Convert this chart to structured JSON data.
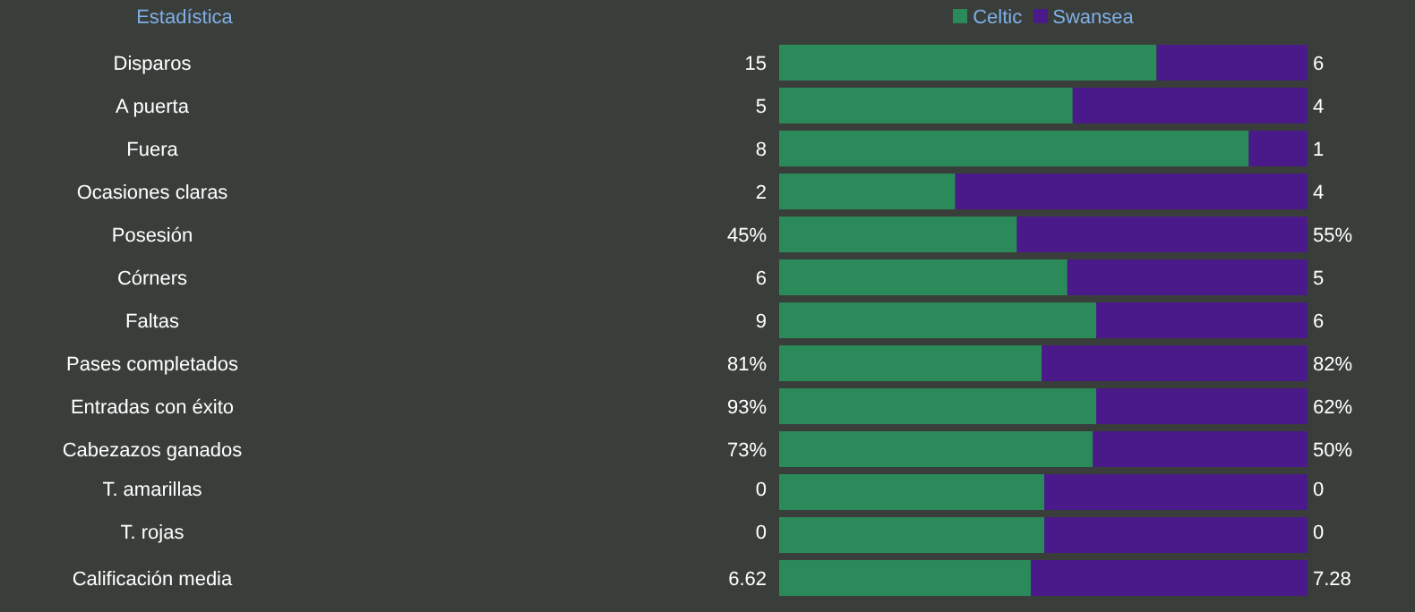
{
  "chart_data": [
    {
      "type": "bar",
      "orientation": "horizontal",
      "stacked": true,
      "data_labels": true,
      "tick_labels": "y",
      "ylabel": "Estadística",
      "legend": "top",
      "categories": [
        "Disparos"
      ],
      "xlim": [
        0,
        21
      ],
      "series": [
        {
          "name": "Celtic",
          "color": "#2b8a59",
          "values": [
            15
          ]
        },
        {
          "name": "Swansea",
          "color": "#4a1a8a",
          "values": [
            6
          ]
        }
      ]
    },
    {
      "type": "bar",
      "orientation": "horizontal",
      "stacked": true,
      "data_labels": true,
      "tick_labels": "y",
      "categories": [
        "A puerta"
      ],
      "xlim": [
        0,
        9
      ],
      "series": [
        {
          "color": "#2b8a59",
          "values": [
            5
          ]
        },
        {
          "color": "#4a1a8a",
          "values": [
            4
          ]
        }
      ]
    },
    {
      "type": "bar",
      "orientation": "horizontal",
      "stacked": true,
      "data_labels": true,
      "tick_labels": "y",
      "categories": [
        "Fuera"
      ],
      "xlim": [
        0,
        9
      ],
      "series": [
        {
          "color": "#2b8a59",
          "values": [
            8
          ]
        },
        {
          "color": "#4a1a8a",
          "values": [
            1
          ]
        }
      ]
    },
    {
      "type": "bar",
      "orientation": "horizontal",
      "stacked": true,
      "data_labels": true,
      "tick_labels": "y",
      "categories": [
        "Ocasiones claras"
      ],
      "xlim": [
        0,
        6
      ],
      "series": [
        {
          "color": "#2b8a59",
          "values": [
            2
          ]
        },
        {
          "color": "#4a1a8a",
          "values": [
            4
          ]
        }
      ]
    },
    {
      "type": "bar",
      "orientation": "horizontal",
      "stacked": true,
      "tick_labels": "y",
      "categories": [
        "Posesión"
      ],
      "xlim": [
        0,
        100
      ],
      "series": [
        {
          "color": "#2b8a59",
          "values": [
            45
          ],
          "value_labels": [
            "45%"
          ]
        },
        {
          "color": "#4a1a8a",
          "values": [
            55
          ],
          "value_labels": [
            "55%"
          ]
        }
      ]
    },
    {
      "type": "bar",
      "orientation": "horizontal",
      "stacked": true,
      "data_labels": true,
      "tick_labels": "y",
      "categories": [
        "Córners"
      ],
      "xlim": [
        0,
        11
      ],
      "series": [
        {
          "color": "#2b8a59",
          "values": [
            6
          ]
        },
        {
          "color": "#4a1a8a",
          "values": [
            5
          ]
        }
      ]
    },
    {
      "type": "bar",
      "orientation": "horizontal",
      "stacked": true,
      "data_labels": true,
      "tick_labels": "y",
      "categories": [
        "Faltas"
      ],
      "xlim": [
        0,
        15
      ],
      "series": [
        {
          "color": "#2b8a59",
          "values": [
            9
          ]
        },
        {
          "color": "#4a1a8a",
          "values": [
            6
          ]
        }
      ]
    },
    {
      "type": "bar",
      "orientation": "horizontal",
      "stacked": true,
      "tick_labels": "y",
      "categories": [
        "Pases completados"
      ],
      "xlim": [
        0,
        163
      ],
      "series": [
        {
          "color": "#2b8a59",
          "values": [
            81
          ],
          "value_labels": [
            "81%"
          ]
        },
        {
          "color": "#4a1a8a",
          "values": [
            82
          ],
          "value_labels": [
            "82%"
          ]
        }
      ]
    },
    {
      "type": "bar",
      "orientation": "horizontal",
      "stacked": true,
      "tick_labels": "y",
      "categories": [
        "Entradas con éxito"
      ],
      "xlim": [
        0,
        155
      ],
      "series": [
        {
          "color": "#2b8a59",
          "values": [
            93
          ],
          "value_labels": [
            "93%"
          ]
        },
        {
          "color": "#4a1a8a",
          "values": [
            62
          ],
          "value_labels": [
            "62%"
          ]
        }
      ]
    },
    {
      "type": "bar",
      "orientation": "horizontal",
      "stacked": true,
      "tick_labels": "y",
      "categories": [
        "Cabezazos ganados"
      ],
      "xlim": [
        0,
        123
      ],
      "series": [
        {
          "color": "#2b8a59",
          "values": [
            73
          ],
          "value_labels": [
            "73%"
          ]
        },
        {
          "color": "#4a1a8a",
          "values": [
            50
          ],
          "value_labels": [
            "50%"
          ]
        }
      ]
    },
    {
      "type": "other",
      "annotations": [
        "T. amarillas",
        "0",
        "0"
      ]
    },
    {
      "type": "other",
      "annotations": [
        "T. rojas",
        "0",
        "0"
      ]
    },
    {
      "type": "bar",
      "orientation": "horizontal",
      "stacked": true,
      "data_labels": true,
      "tick_labels": "y",
      "categories": [
        "Calificación media"
      ],
      "xlim": [
        0,
        13.9
      ],
      "series": [
        {
          "color": "#2b8a59",
          "values": [
            6.62
          ]
        },
        {
          "color": "#4a1a8a",
          "values": [
            7.28
          ]
        }
      ]
    }
  ]
}
